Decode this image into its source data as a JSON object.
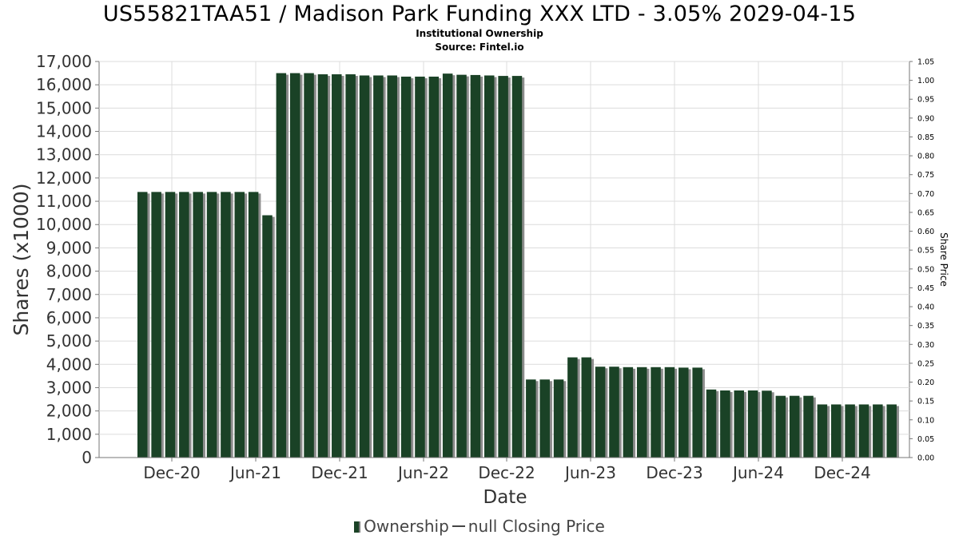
{
  "title": "US55821TAA51 / Madison Park Funding XXX LTD - 3.05% 2029-04-15",
  "subtitle1": "Institutional Ownership",
  "subtitle2": "Source: Fintel.io",
  "legend": {
    "ownership": "Ownership",
    "price": "null Closing Price"
  },
  "colors": {
    "bar": "#1a4226",
    "bar_shadow": "#8c8c8c",
    "grid": "#dcdcdc",
    "axis": "#777777",
    "text": "#333333"
  },
  "chart_data": {
    "type": "bar",
    "xlabel": "Date",
    "ylabel": "Shares (x1000)",
    "y2label": "Share Price",
    "ylim": [
      0,
      17000
    ],
    "y_ticks": [
      0,
      1000,
      2000,
      3000,
      4000,
      5000,
      6000,
      7000,
      8000,
      9000,
      10000,
      11000,
      12000,
      13000,
      14000,
      15000,
      16000,
      17000
    ],
    "y_tick_labels": [
      "0",
      "1,000",
      "2,000",
      "3,000",
      "4,000",
      "5,000",
      "6,000",
      "7,000",
      "8,000",
      "9,000",
      "10,000",
      "11,000",
      "12,000",
      "13,000",
      "14,000",
      "15,000",
      "16,000",
      "17,000"
    ],
    "y2lim": [
      0,
      1.05
    ],
    "y2_tick_labels": [
      "0.00",
      "0.05",
      "0.10",
      "0.15",
      "0.20",
      "0.25",
      "0.30",
      "0.35",
      "0.40",
      "0.45",
      "0.50",
      "0.55",
      "0.60",
      "0.65",
      "0.70",
      "0.75",
      "0.80",
      "0.85",
      "0.90",
      "0.95",
      "1.00",
      "1.05"
    ],
    "x_tick_labels": [
      "Dec-20",
      "Jun-21",
      "Dec-21",
      "Jun-22",
      "Dec-22",
      "Jun-23",
      "Dec-23",
      "Jun-24",
      "Dec-24"
    ],
    "grid": true,
    "legend_position": "bottom",
    "series": [
      {
        "name": "Ownership",
        "values": [
          11400,
          11400,
          11400,
          11400,
          11400,
          11400,
          11400,
          11400,
          11400,
          10400,
          16500,
          16500,
          16500,
          16450,
          16450,
          16450,
          16400,
          16400,
          16400,
          16350,
          16350,
          16350,
          16480,
          16430,
          16420,
          16400,
          16380,
          16380,
          3350,
          3350,
          3350,
          4300,
          4300,
          3900,
          3900,
          3880,
          3880,
          3880,
          3880,
          3860,
          3860,
          2920,
          2880,
          2880,
          2880,
          2870,
          2650,
          2650,
          2650,
          2280,
          2280,
          2280,
          2280,
          2280,
          2280
        ]
      },
      {
        "name": "null Closing Price",
        "values": []
      }
    ]
  }
}
